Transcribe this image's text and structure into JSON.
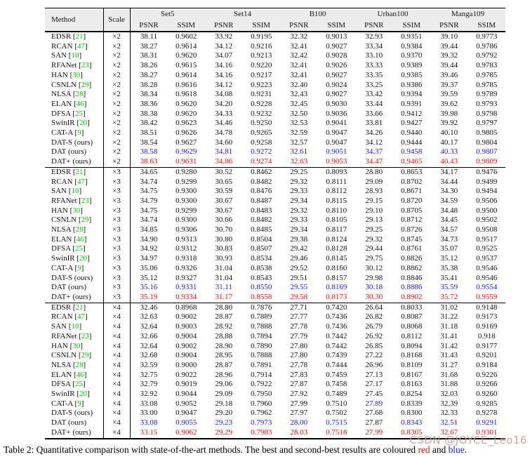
{
  "colors": {
    "best_red": "#ee1111",
    "second_blue": "#1a1aee",
    "citation_green": "#00cc00",
    "header_bg": "#ededed",
    "watermark_pink": "#c99595"
  },
  "caption": {
    "label": "Table 2:",
    "body": " Quantitative comparison with state-of-the-art methods. The best and second-best results are coloured ",
    "red_word": "red",
    "mid": " and ",
    "blue_word": "blue",
    "end": "."
  },
  "watermark": {
    "text": "CSDN @JOYCE_Leo16"
  },
  "table": {
    "col_method": "Method",
    "col_scale": "Scale",
    "datasets": [
      "Set5",
      "Set14",
      "B100",
      "Urban100",
      "Manga109"
    ],
    "metrics": [
      "PSNR",
      "SSIM"
    ],
    "sections": [
      {
        "scale": "×2",
        "rows": [
          {
            "name": "EDSR",
            "ref": "21",
            "values": [
              "38.11",
              "0.9602",
              "33.92",
              "0.9195",
              "32.32",
              "0.9013",
              "32.93",
              "0.9351",
              "39.10",
              "0.9773"
            ]
          },
          {
            "name": "RCAN",
            "ref": "47",
            "values": [
              "38.27",
              "0.9614",
              "34.12",
              "0.9216",
              "32.41",
              "0.9027",
              "33.34",
              "0.9384",
              "39.44",
              "0.9786"
            ]
          },
          {
            "name": "SAN",
            "ref": "10",
            "values": [
              "38.31",
              "0.9620",
              "34.07",
              "0.9213",
              "32.42",
              "0.9028",
              "33.10",
              "0.9370",
              "39.32",
              "0.9792"
            ]
          },
          {
            "name": "RFANet",
            "ref": "23",
            "values": [
              "38.26",
              "0.9615",
              "34.16",
              "0.9220",
              "32.41",
              "0.9026",
              "33.33",
              "0.9389",
              "39.44",
              "0.9783"
            ]
          },
          {
            "name": "HAN",
            "ref": "30",
            "values": [
              "38.27",
              "0.9614",
              "34.16",
              "0.9217",
              "32.41",
              "0.9027",
              "33.35",
              "0.9385",
              "39.46",
              "0.9785"
            ]
          },
          {
            "name": "CSNLN",
            "ref": "29",
            "values": [
              "38.28",
              "0.9616",
              "34.12",
              "0.9223",
              "32.40",
              "0.9024",
              "33.25",
              "0.9386",
              "39.37",
              "0.9785"
            ]
          },
          {
            "name": "NLSA",
            "ref": "28",
            "values": [
              "38.34",
              "0.9618",
              "34.08",
              "0.9231",
              "32.43",
              "0.9027",
              "33.42",
              "0.9394",
              "39.59",
              "0.9789"
            ]
          },
          {
            "name": "ELAN",
            "ref": "46",
            "values": [
              "38.36",
              "0.9620",
              "34.20",
              "0.9228",
              "32.45",
              "0.9030",
              "33.44",
              "0.9391",
              "39.62",
              "0.9793"
            ]
          },
          {
            "name": "DFSA",
            "ref": "25",
            "values": [
              "38.38",
              "0.9620",
              "34.33",
              "0.9232",
              "32.50",
              "0.9036",
              "33.66",
              "0.9412",
              "39.98",
              "0.9798"
            ]
          },
          {
            "name": "SwinIR",
            "ref": "20",
            "values": [
              "38.42",
              "0.9623",
              "34.46",
              "0.9250",
              "32.53",
              "0.9041",
              "33.81",
              "0.9427",
              "39.92",
              "0.9797"
            ]
          },
          {
            "name": "CAT-A",
            "ref": "9",
            "values": [
              "38.51",
              "0.9626",
              "34.78",
              "0.9265",
              "32.59",
              "0.9047",
              "34.26",
              "0.9440",
              "40.10",
              "0.9805"
            ]
          },
          {
            "name": "DAT-S (ours)",
            "values": [
              "38.54",
              "0.9627",
              "34.60",
              "0.9258",
              "32.57",
              "0.9047",
              "34.12",
              "0.9444",
              "40.17",
              "0.9804"
            ]
          },
          {
            "name": "DAT (ours)",
            "hl": "bbbbbbbbbb",
            "values": [
              "38.58",
              "0.9629",
              "34.81",
              "0.9272",
              "32.61",
              "0.9051",
              "34.37",
              "0.9458",
              "40.33",
              "0.9807"
            ]
          },
          {
            "name": "DAT+ (ours)",
            "hl": "rrrrrrrrrr",
            "values": [
              "38.63",
              "0.9631",
              "34.86",
              "0.9274",
              "32.63",
              "0.9053",
              "34.47",
              "0.9465",
              "40.43",
              "0.9809"
            ]
          }
        ]
      },
      {
        "scale": "×3",
        "rows": [
          {
            "name": "EDSR",
            "ref": "21",
            "values": [
              "34.65",
              "0.9280",
              "30.52",
              "0.8462",
              "29.25",
              "0.8093",
              "28.80",
              "0.8653",
              "34.17",
              "0.9476"
            ]
          },
          {
            "name": "RCAN",
            "ref": "47",
            "values": [
              "34.74",
              "0.9299",
              "30.65",
              "0.8482",
              "29.32",
              "0.8111",
              "29.09",
              "0.8702",
              "34.44",
              "0.9499"
            ]
          },
          {
            "name": "SAN",
            "ref": "10",
            "values": [
              "34.75",
              "0.9300",
              "30.59",
              "0.8476",
              "29.33",
              "0.8112",
              "28.93",
              "0.8671",
              "34.30",
              "0.9494"
            ]
          },
          {
            "name": "RFANet",
            "ref": "23",
            "values": [
              "34.79",
              "0.9300",
              "30.67",
              "0.8487",
              "29.34",
              "0.8115",
              "29.15",
              "0.8720",
              "34.59",
              "0.9506"
            ]
          },
          {
            "name": "HAN",
            "ref": "30",
            "values": [
              "34.75",
              "0.9299",
              "30.67",
              "0.8483",
              "29.32",
              "0.8110",
              "29.10",
              "0.8705",
              "34.48",
              "0.9500"
            ]
          },
          {
            "name": "CSNLN",
            "ref": "29",
            "values": [
              "34.74",
              "0.9300",
              "30.66",
              "0.8482",
              "29.33",
              "0.8105",
              "29.13",
              "0.8712",
              "34.45",
              "0.9502"
            ]
          },
          {
            "name": "NLSA",
            "ref": "28",
            "values": [
              "34.85",
              "0.9306",
              "30.70",
              "0.8485",
              "29.34",
              "0.8117",
              "29.25",
              "0.8726",
              "34.57",
              "0.9508"
            ]
          },
          {
            "name": "ELAN",
            "ref": "46",
            "values": [
              "34.90",
              "0.9313",
              "30.80",
              "0.8504",
              "29.38",
              "0.8124",
              "29.32",
              "0.8745",
              "34.73",
              "0.9517"
            ]
          },
          {
            "name": "DFSA",
            "ref": "25",
            "values": [
              "34.92",
              "0.9312",
              "30.83",
              "0.8507",
              "29.42",
              "0.8128",
              "29.44",
              "0.8761",
              "35.07",
              "0.9525"
            ]
          },
          {
            "name": "SwinIR",
            "ref": "20",
            "values": [
              "34.97",
              "0.9318",
              "30.93",
              "0.8534",
              "29.46",
              "0.8145",
              "29.75",
              "0.8826",
              "35.12",
              "0.9537"
            ]
          },
          {
            "name": "CAT-A",
            "ref": "9",
            "values": [
              "35.06",
              "0.9326",
              "31.04",
              "0.8538",
              "29.52",
              "0.8160",
              "30.12",
              "0.8862",
              "35.38",
              "0.9546"
            ]
          },
          {
            "name": "DAT-S (ours)",
            "values": [
              "35.12",
              "0.9327",
              "31.04",
              "0.8543",
              "29.51",
              "0.8157",
              "29.98",
              "0.8846",
              "35.41",
              "0.9546"
            ]
          },
          {
            "name": "DAT (ours)",
            "hl": "bbbbbbbbbb",
            "values": [
              "35.16",
              "0.9331",
              "31.11",
              "0.8550",
              "29.55",
              "0.8169",
              "30.18",
              "0.8886",
              "35.59",
              "0.9554"
            ]
          },
          {
            "name": "DAT+ (ours)",
            "hl": "rrrrrrrrrr",
            "values": [
              "35.19",
              "0.9334",
              "31.17",
              "0.8558",
              "29.58",
              "0.8173",
              "30.30",
              "0.8902",
              "35.72",
              "0.9559"
            ]
          }
        ]
      },
      {
        "scale": "×4",
        "rows": [
          {
            "name": "EDSR",
            "ref": "21",
            "values": [
              "32.46",
              "0.8968",
              "28.80",
              "0.7876",
              "27.71",
              "0.7420",
              "26.64",
              "0.8033",
              "31.02",
              "0.9148"
            ]
          },
          {
            "name": "RCAN",
            "ref": "47",
            "values": [
              "32.63",
              "0.9002",
              "28.87",
              "0.7889",
              "27.77",
              "0.7436",
              "26.82",
              "0.8087",
              "31.22",
              "0.9173"
            ]
          },
          {
            "name": "SAN",
            "ref": "10",
            "values": [
              "32.64",
              "0.9003",
              "28.92",
              "0.7888",
              "27.78",
              "0.7436",
              "26.79",
              "0.8068",
              "31.18",
              "0.9169"
            ]
          },
          {
            "name": "RFANet",
            "ref": "23",
            "values": [
              "32.66",
              "0.9004",
              "28.88",
              "0.7894",
              "27.79",
              "0.7442",
              "26.92",
              "0.8112",
              "31.41",
              "0.918"
            ]
          },
          {
            "name": "HAN",
            "ref": "30",
            "values": [
              "32.64",
              "0.9002",
              "28.90",
              "0.7890",
              "27.80",
              "0.7442",
              "26.85",
              "0.8094",
              "31.42",
              "0.9177"
            ]
          },
          {
            "name": "CSNLN",
            "ref": "29",
            "values": [
              "32.68",
              "0.9004",
              "28.95",
              "0.7888",
              "27.80",
              "0.7439",
              "27.22",
              "0.8168",
              "31.43",
              "0.9201"
            ]
          },
          {
            "name": "NLSA",
            "ref": "28",
            "values": [
              "32.59",
              "0.9000",
              "28.87",
              "0.7891",
              "27.78",
              "0.7444",
              "26.96",
              "0.8109",
              "31.27",
              "0.9184"
            ]
          },
          {
            "name": "ELAN",
            "ref": "46",
            "values": [
              "32.75",
              "0.9022",
              "28.96",
              "0.7914",
              "27.83",
              "0.7459",
              "27.13",
              "0.8167",
              "31.68",
              "0.9226"
            ]
          },
          {
            "name": "DFSA",
            "ref": "25",
            "values": [
              "32.79",
              "0.9019",
              "29.06",
              "0.7922",
              "27.87",
              "0.7458",
              "27.17",
              "0.8163",
              "31.88",
              "0.9266"
            ]
          },
          {
            "name": "SwinIR",
            "ref": "20",
            "values": [
              "32.92",
              "0.9044",
              "29.09",
              "0.7950",
              "27.92",
              "0.7489",
              "27.45",
              "0.8254",
              "32.03",
              "0.9260"
            ]
          },
          {
            "name": "CAT-A",
            "ref": "9",
            "hl": "nnnnnnbnnn",
            "values": [
              "33.08",
              "0.9052",
              "29.18",
              "0.7960",
              "27.99",
              "0.7510",
              "27.89",
              "0.8339",
              "32.39",
              "0.9285"
            ]
          },
          {
            "name": "DAT-S (ours)",
            "values": [
              "33.00",
              "0.9047",
              "29.20",
              "0.7962",
              "27.97",
              "0.7502",
              "27.68",
              "0.8300",
              "32.33",
              "0.9278"
            ]
          },
          {
            "name": "DAT (ours)",
            "hl": "bbbbbbnbbb",
            "values": [
              "33.08",
              "0.9055",
              "29.23",
              "0.7973",
              "28.00",
              "0.7515",
              "27.87",
              "0.8343",
              "32.51",
              "0.9291"
            ]
          },
          {
            "name": "DAT+ (ours)",
            "hl": "rrrrrrrrrr",
            "values": [
              "33.15",
              "0.9062",
              "29.29",
              "0.7983",
              "28.03",
              "0.7518",
              "27.99",
              "0.8365",
              "32.67",
              "0.9301"
            ]
          }
        ]
      }
    ]
  }
}
